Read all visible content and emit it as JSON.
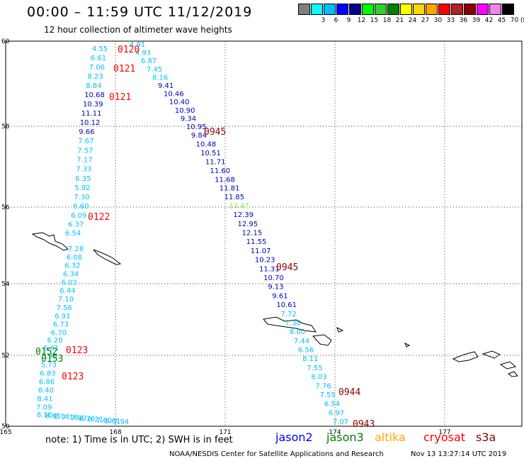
{
  "title": "00:00 – 11:59 UTC 11/12/2019",
  "subtitle": "12 hour collection of altimeter wave heights",
  "scale": {
    "unit": "(ft)",
    "bins": [
      {
        "label": "",
        "color": "#7f7f7f"
      },
      {
        "label": "3",
        "color": "#00ffff"
      },
      {
        "label": "6",
        "color": "#00bfff"
      },
      {
        "label": "9",
        "color": "#0000ff"
      },
      {
        "label": "12",
        "color": "#00008b"
      },
      {
        "label": "15",
        "color": "#00ff00"
      },
      {
        "label": "18",
        "color": "#32cd32"
      },
      {
        "label": "21",
        "color": "#008000"
      },
      {
        "label": "24",
        "color": "#ffff00"
      },
      {
        "label": "27",
        "color": "#ffd700"
      },
      {
        "label": "30",
        "color": "#ffa500"
      },
      {
        "label": "33",
        "color": "#ff0000"
      },
      {
        "label": "36",
        "color": "#b22222"
      },
      {
        "label": "39",
        "color": "#8b0000"
      },
      {
        "label": "42",
        "color": "#ff00ff"
      },
      {
        "label": "45",
        "color": "#ee82ee"
      },
      {
        "label": "70",
        "color": "#000000"
      }
    ]
  },
  "map": {
    "lon_ticks": [
      "165",
      "168",
      "171",
      "174",
      "177"
    ],
    "lat_ticks": [
      "60",
      "58",
      "56",
      "54",
      "52",
      "50"
    ]
  },
  "tracks": {
    "track_a": {
      "color": "#00bfff",
      "values": [
        "4.55",
        "6.61",
        "7.06",
        "8.23",
        "8.84",
        "10.68",
        "10.39",
        "11.11",
        "10.12",
        "9.66",
        "7.67",
        "7.57",
        "7.17",
        "7.33",
        "6.35",
        "5.92",
        "7.30",
        "6.60",
        "6.09",
        "6.37",
        "6.54"
      ],
      "times": [
        "0120",
        "0121",
        "0121",
        "0122"
      ]
    },
    "track_b": {
      "color": "#00bfff",
      "values": [
        "4.91",
        "4.93",
        "6.87",
        "7.45",
        "8.16",
        "9.41",
        "10.46",
        "10.40",
        "10.90",
        "9.34",
        "10.95",
        "9.84",
        "10.48",
        "10.51",
        "11.71",
        "11.60",
        "11.68",
        "11.81",
        "11.85",
        "13.47",
        "12.39",
        "12.95",
        "12.15",
        "11.55",
        "11.07",
        "10.23",
        "11.31",
        "10.70",
        "9.13",
        "9.61",
        "10.61",
        "7.72",
        "7.38",
        "8.00",
        "7.44",
        "6.56",
        "8.11",
        "7.55",
        "8.03",
        "7.76",
        "7.55",
        "6.54",
        "6.97",
        "7.07"
      ],
      "times": [
        "0945",
        "0945",
        "0944",
        "0943"
      ]
    },
    "track_c": {
      "color": "#00bfff",
      "values": [
        "7.28",
        "6.08",
        "6.32",
        "6.34",
        "6.02",
        "6.44",
        "7.10",
        "7.56",
        "6.91",
        "6.73",
        "6.70",
        "6.20",
        "6.61",
        "5.98",
        "5.73",
        "6.83",
        "6.86",
        "8.40",
        "8.41",
        "7.09",
        "8.16",
        "8.85",
        "8.14",
        "7.18",
        "7.80",
        "6.76",
        "8.21",
        "7.60",
        "8.61",
        "7.94"
      ],
      "times": [
        "0123",
        "0123",
        "0152",
        "0153"
      ]
    }
  },
  "note": "note:  1) Time is in UTC;  2) SWH is in feet",
  "missions": [
    {
      "name": "jason2",
      "color": "#0000ff"
    },
    {
      "name": "jason3",
      "color": "#008000"
    },
    {
      "name": "altika",
      "color": "#ffa500"
    },
    {
      "name": "cryosat",
      "color": "#ff0000"
    },
    {
      "name": "s3a",
      "color": "#8b0000"
    }
  ],
  "credit": "NOAA/NESDIS Center for Satellite Applications and Research",
  "timestamp": "Nov 13 13:27:14 UTC 2019"
}
